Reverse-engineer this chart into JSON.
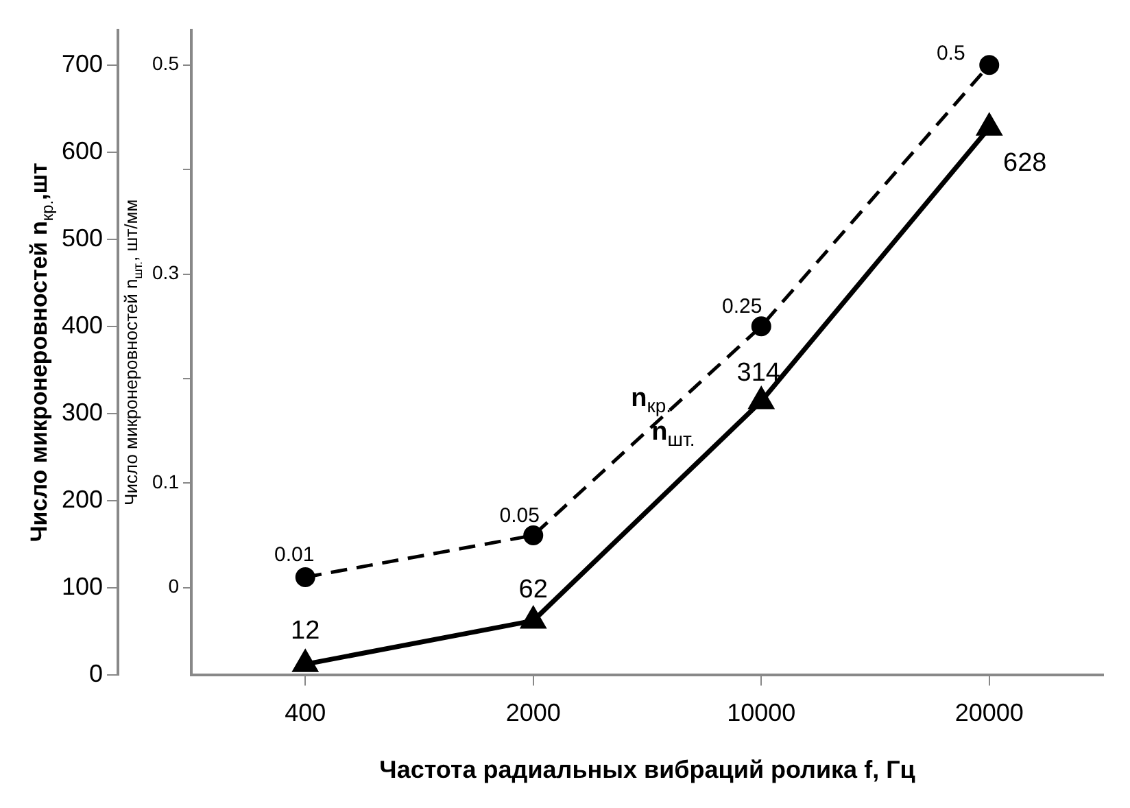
{
  "chart_data": {
    "type": "line",
    "xlabel": "Частота радиальных вибраций ролика f, Гц",
    "ylabel": "Число микронеровностей n$_{кр.}$,шт",
    "y2label": "Число микронеровностей n$_{шт.}$, шт/мм",
    "categories": [
      "400",
      "2000",
      "10000",
      "20000"
    ],
    "ylim": [
      0,
      740
    ],
    "yticks": [
      0,
      100,
      200,
      300,
      400,
      500,
      600,
      700
    ],
    "y2lim": [
      -0.0833,
      0.5333
    ],
    "y2ticks": [
      0,
      0.1,
      {
        "value": 0.2,
        "label": null
      },
      0.3,
      {
        "value": 0.4,
        "label": null
      },
      0.5
    ],
    "series": [
      {
        "name": "n$_{кр.}$",
        "color": "#000000",
        "axis": "y2",
        "values": [
          0.01,
          0.05,
          0.25,
          0.5
        ],
        "value_labels": [
          "0.01",
          "0.05",
          "0.25",
          "0.5"
        ],
        "marker": "circle",
        "line_style": "dashed"
      },
      {
        "name": "n$_{шт.}$",
        "color": "#000000",
        "axis": "y",
        "values": [
          12,
          62,
          314,
          628
        ],
        "value_labels": [
          "12",
          "62",
          "314",
          "628"
        ],
        "marker": "triangle",
        "line_style": "solid"
      }
    ],
    "grid": false,
    "legend": false
  }
}
